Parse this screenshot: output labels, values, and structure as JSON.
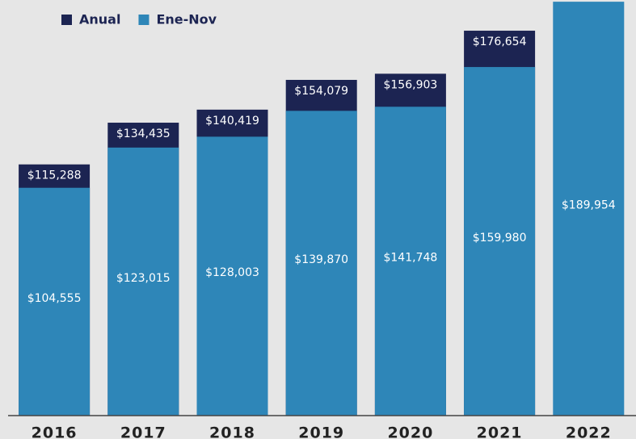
{
  "chart_data": {
    "type": "overlapping_bar",
    "categories": [
      "2016",
      "2017",
      "2018",
      "2019",
      "2020",
      "2021",
      "2022"
    ],
    "series": [
      {
        "name": "Anual",
        "color": "#1c2452",
        "values": [
          115288,
          134435,
          140419,
          154079,
          156903,
          176654,
          null
        ],
        "value_labels": [
          "$115,288",
          "$134,435",
          "$140,419",
          "$154,079",
          "$156,903",
          "$176,654",
          null
        ]
      },
      {
        "name": "Ene-Nov",
        "color": "#2e86b8",
        "values": [
          104555,
          123015,
          128003,
          139870,
          141748,
          159980,
          189954
        ],
        "value_labels": [
          "$104,555",
          "$123,015",
          "$128,003",
          "$139,870",
          "$141,748",
          "$159,980",
          "$189,954"
        ]
      }
    ],
    "ylim": [
      0,
      190000
    ],
    "legend": "upper left"
  }
}
